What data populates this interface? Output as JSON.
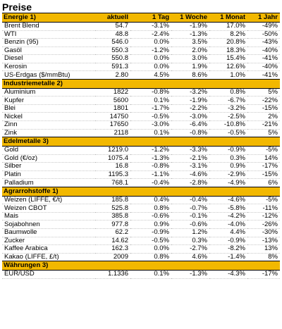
{
  "title": "Preise",
  "columns": [
    "aktuell",
    "1 Tag",
    "1 Woche",
    "1 Monat",
    "1 Jahr"
  ],
  "sections": [
    {
      "name": "Energie 1)",
      "rows": [
        [
          "Brent Blend",
          "54.7",
          "-3.1%",
          "-1.9%",
          "17.0%",
          "-49%"
        ],
        [
          "WTI",
          "48.8",
          "-2.4%",
          "-1.3%",
          "8.2%",
          "-50%"
        ],
        [
          "Benzin (95)",
          "546.0",
          "0.0%",
          "3.5%",
          "20.8%",
          "-43%"
        ],
        [
          "Gasöl",
          "550.3",
          "-1.2%",
          "2.0%",
          "18.3%",
          "-40%"
        ],
        [
          "Diesel",
          "550.8",
          "0.0%",
          "3.0%",
          "15.4%",
          "-41%"
        ],
        [
          "Kerosin",
          "591.3",
          "0.0%",
          "1.9%",
          "12.6%",
          "-40%"
        ],
        [
          "US-Erdgas ($/mmBtu)",
          "2.80",
          "4.5%",
          "8.6%",
          "1.0%",
          "-41%"
        ]
      ]
    },
    {
      "name": "Industriemetalle 2)",
      "rows": [
        [
          "Aluminium",
          "1822",
          "-0.8%",
          "-3.2%",
          "0.8%",
          "5%"
        ],
        [
          "Kupfer",
          "5600",
          "0.1%",
          "-1.9%",
          "-6.7%",
          "-22%"
        ],
        [
          "Blei",
          "1801",
          "-1.7%",
          "-2.2%",
          "-3.2%",
          "-15%"
        ],
        [
          "Nickel",
          "14750",
          "-0.5%",
          "-3.0%",
          "-2.5%",
          "2%"
        ],
        [
          "Zinn",
          "17650",
          "-3.0%",
          "-6.4%",
          "-10.8%",
          "-21%"
        ],
        [
          "Zink",
          "2118",
          "0.1%",
          "-0.8%",
          "-0.5%",
          "5%"
        ]
      ]
    },
    {
      "name": "Edelmetalle 3)",
      "rows": [
        [
          "Gold",
          "1219.0",
          "-1.2%",
          "-3.3%",
          "-0.9%",
          "-5%"
        ],
        [
          "Gold (€/oz)",
          "1075.4",
          "-1.3%",
          "-2.1%",
          "0.3%",
          "14%"
        ],
        [
          "Silber",
          "16.8",
          "-0.8%",
          "-3.1%",
          "0.9%",
          "-17%"
        ],
        [
          "Platin",
          "1195.3",
          "-1.1%",
          "-4.6%",
          "-2.9%",
          "-15%"
        ],
        [
          "Palladium",
          "768.1",
          "-0.4%",
          "-2.8%",
          "-4.9%",
          "6%"
        ]
      ]
    },
    {
      "name": "Agrarrohstoffe 1)",
      "rows": [
        [
          "Weizen (LIFFE, €/t)",
          "185.8",
          "0.4%",
          "-0.4%",
          "-4.6%",
          "-5%"
        ],
        [
          "Weizen CBOT",
          "525.8",
          "0.8%",
          "-0.7%",
          "-5.8%",
          "-11%"
        ],
        [
          "Mais",
          "385.8",
          "-0.6%",
          "-0.1%",
          "-4.2%",
          "-12%"
        ],
        [
          "Sojabohnen",
          "977.8",
          "0.9%",
          "-0.6%",
          "-4.0%",
          "-26%"
        ],
        [
          "Baumwolle",
          "62.2",
          "-0.9%",
          "1.2%",
          "4.4%",
          "-30%"
        ],
        [
          "Zucker",
          "14.62",
          "-0.5%",
          "0.3%",
          "-0.9%",
          "-13%"
        ],
        [
          "Kaffee Arabica",
          "162.3",
          "0.0%",
          "-2.7%",
          "-8.2%",
          "13%"
        ],
        [
          "Kakao (LIFFE, £/t)",
          "2009",
          "0.8%",
          "4.6%",
          "-1.4%",
          "8%"
        ]
      ]
    },
    {
      "name": "Währungen 3)",
      "rows": [
        [
          "EUR/USD",
          "1.1336",
          "0.1%",
          "-1.3%",
          "-4.3%",
          "-17%"
        ]
      ]
    }
  ]
}
